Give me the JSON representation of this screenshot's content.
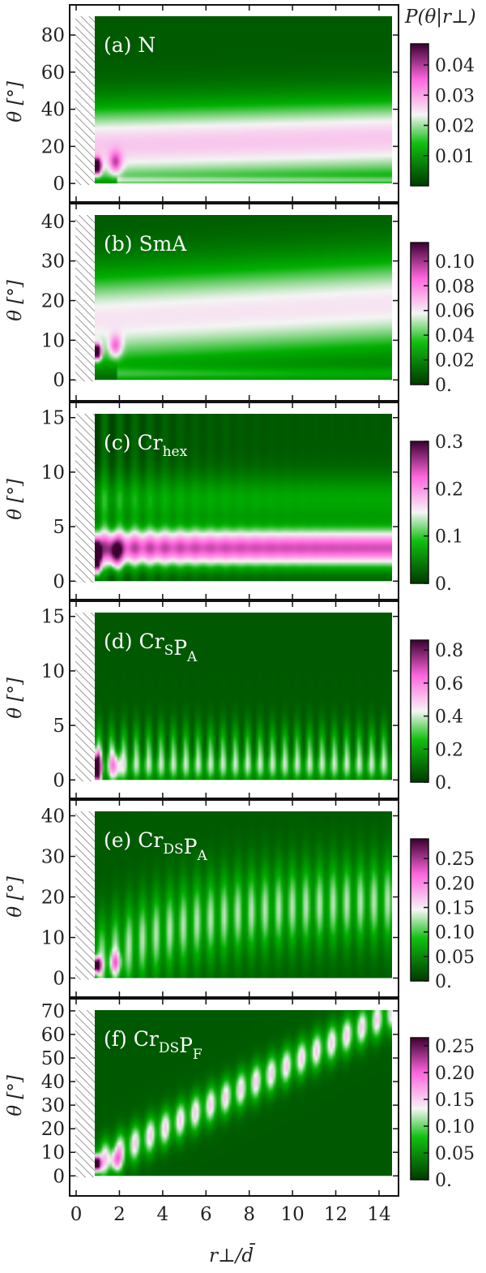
{
  "chart_data": {
    "type": "heatmap",
    "colorbar_title": "P(θ|r⊥)",
    "xlabel": "r⊥/d̄",
    "xlim": [
      -0.3,
      14.9
    ],
    "x_ticks": [
      "0",
      "2",
      "4",
      "6",
      "8",
      "10",
      "12",
      "14"
    ],
    "colormap": [
      "#003a00",
      "#00b000",
      "#f5f5f5",
      "#ff66dd",
      "#3a0030"
    ],
    "panels": [
      {
        "label_prefix": "(a) ",
        "label_main": "N",
        "label_subs": [],
        "ylabel": "θ [°]",
        "ylim": [
          -3,
          91
        ],
        "y_ticks": [
          "0",
          "20",
          "40",
          "60",
          "80"
        ],
        "colorbar_ticks": [
          "0.01",
          "0.02",
          "0.03",
          "0.04"
        ],
        "colorbar_max": 0.047,
        "peak_theta": 9,
        "band_theta": 20,
        "band_width": 16,
        "band_intensity": 0.5,
        "hotspot_intensity": 1.0,
        "pattern": "broad"
      },
      {
        "label_prefix": "(b) ",
        "label_main": "SmA",
        "label_subs": [],
        "ylabel": "θ [°]",
        "ylim": [
          -2,
          42
        ],
        "y_ticks": [
          "0",
          "10",
          "20",
          "30",
          "40"
        ],
        "colorbar_ticks": [
          "0.",
          "0.02",
          "0.04",
          "0.06",
          "0.08",
          "0.10"
        ],
        "colorbar_max": 0.115,
        "peak_theta": 7,
        "band_theta": 15,
        "band_width": 9,
        "band_intensity": 0.45,
        "hotspot_intensity": 1.0,
        "pattern": "broad"
      },
      {
        "label_prefix": "(c) ",
        "label_main": "Cr",
        "label_subs": [
          {
            "text": "hex",
            "after": 0
          }
        ],
        "ylabel": "θ [°]",
        "ylim": [
          -0.5,
          15.5
        ],
        "y_ticks": [
          "0",
          "5",
          "10",
          "15"
        ],
        "colorbar_ticks": [
          "0.",
          "0.1",
          "0.2",
          "0.3"
        ],
        "colorbar_max": 0.3,
        "peak_theta": 2,
        "band_theta": 3,
        "band_width": 2.4,
        "band_intensity": 0.72,
        "hotspot_intensity": 1.0,
        "pattern": "flat"
      },
      {
        "label_prefix": "(d) ",
        "label_main": "CrSPA",
        "label_subs": [
          {
            "text": "S",
            "base": "Cr"
          },
          {
            "text": "A",
            "base": "P"
          }
        ],
        "ylabel": "θ [°]",
        "ylim": [
          -0.5,
          15.5
        ],
        "y_ticks": [
          "0",
          "5",
          "10",
          "15"
        ],
        "colorbar_ticks": [
          "0.",
          "0.2",
          "0.4",
          "0.6",
          "0.8"
        ],
        "colorbar_max": 0.86,
        "peak_theta": 1,
        "band_theta": 2.5,
        "band_width": 3.5,
        "band_intensity": 0.32,
        "hotspot_intensity": 1.0,
        "pattern": "decay"
      },
      {
        "label_prefix": "(e) ",
        "label_main": "CrDSPA",
        "label_subs": [
          {
            "text": "DS",
            "base": "Cr"
          },
          {
            "text": "A",
            "base": "P"
          }
        ],
        "ylabel": "θ [°]",
        "ylim": [
          -1.5,
          41.5
        ],
        "y_ticks": [
          "0",
          "10",
          "20",
          "30",
          "40"
        ],
        "colorbar_ticks": [
          "0.",
          "0.05",
          "0.10",
          "0.15",
          "0.20",
          "0.25"
        ],
        "colorbar_max": 0.29,
        "peak_theta": 3,
        "band_theta": 20,
        "band_width": 8,
        "band_intensity": 0.38,
        "hotspot_intensity": 1.0,
        "pattern": "curve"
      },
      {
        "label_prefix": "(f) ",
        "label_main": "CrDSPF",
        "label_subs": [
          {
            "text": "DS",
            "base": "Cr"
          },
          {
            "text": "F",
            "base": "P"
          }
        ],
        "ylabel": "θ [°]",
        "ylim": [
          -3,
          71
        ],
        "y_ticks": [
          "0",
          "10",
          "20",
          "30",
          "40",
          "50",
          "60",
          "70"
        ],
        "colorbar_ticks": [
          "0.",
          "0.05",
          "0.10",
          "0.15",
          "0.20",
          "0.25"
        ],
        "colorbar_max": 0.265,
        "peak_theta": 5,
        "band_theta": 0,
        "band_width": 6,
        "band_intensity": 0.5,
        "hotspot_intensity": 1.0,
        "pattern": "linear"
      }
    ]
  }
}
